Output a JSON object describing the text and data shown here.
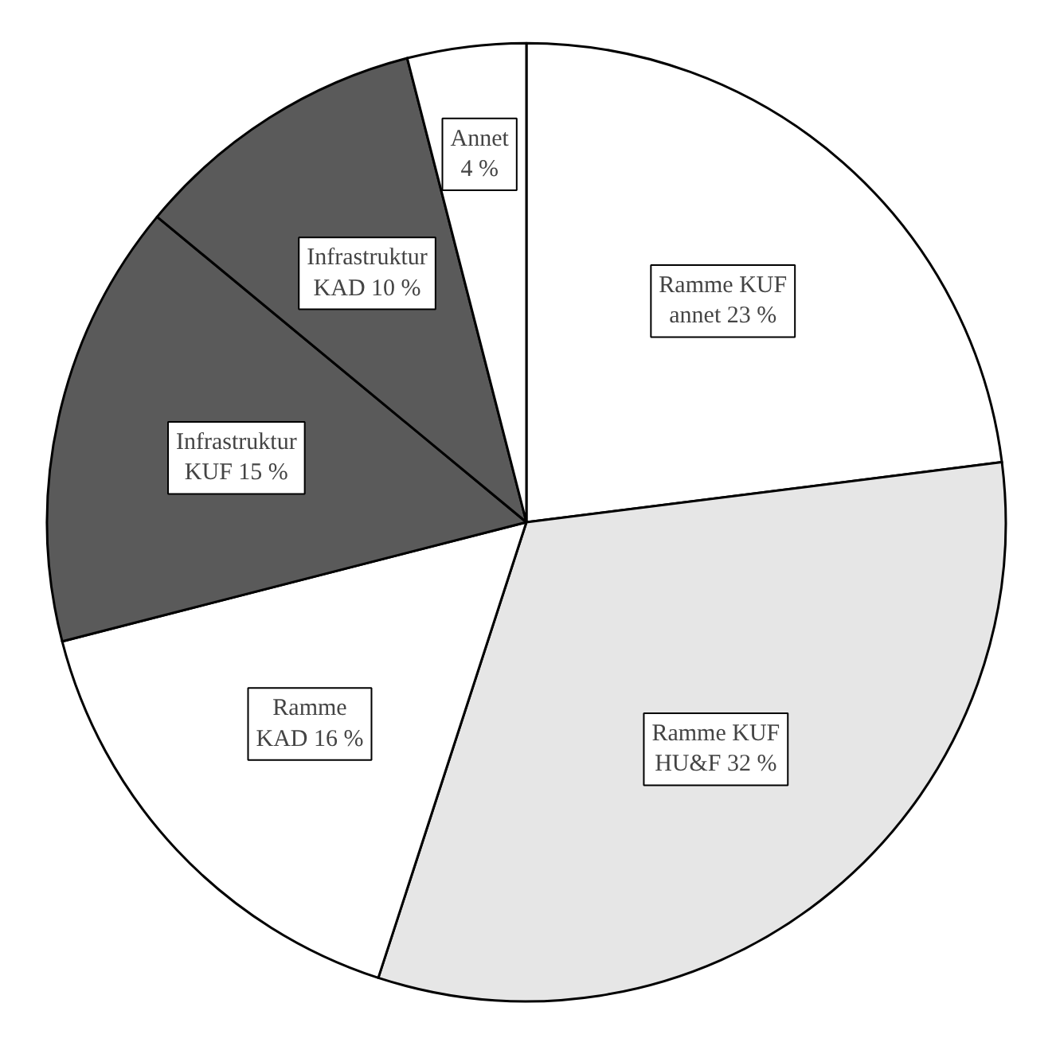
{
  "chart_data": {
    "type": "pie",
    "categories": [
      "Ramme KUF annet",
      "Ramme KUF HU&F",
      "Ramme KAD",
      "Infrastruktur KUF",
      "Infrastruktur KAD",
      "Annet"
    ],
    "values": [
      23,
      32,
      16,
      15,
      10,
      4
    ],
    "colors": [
      "#ffffff",
      "#e6e6e6",
      "#ffffff",
      "#5a5a5a",
      "#5a5a5a",
      "#ffffff"
    ],
    "value_labels": [
      "23 %",
      "32 %",
      "16 %",
      "15 %",
      "10 %",
      "4 %"
    ],
    "legend": false
  }
}
